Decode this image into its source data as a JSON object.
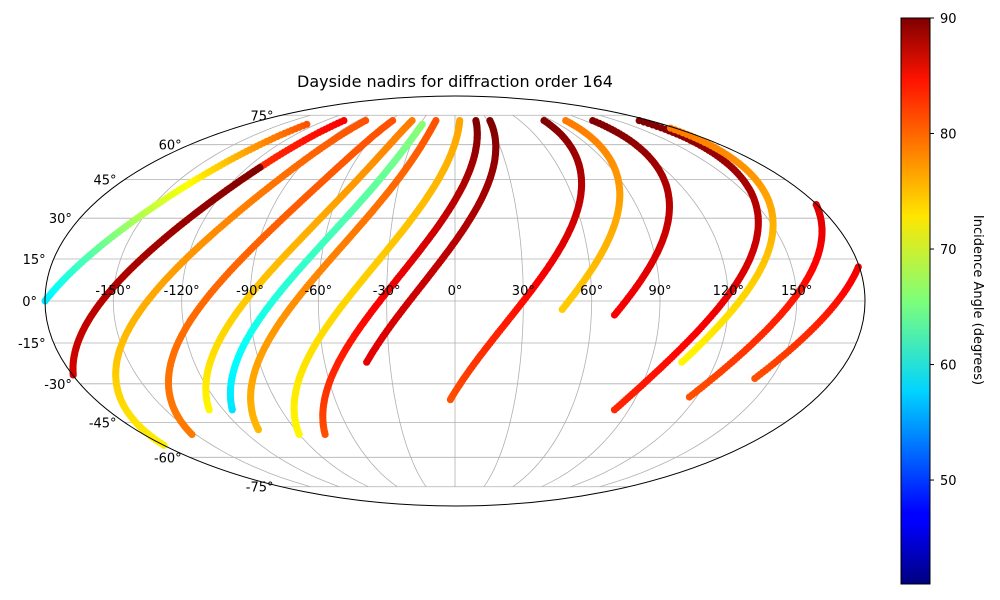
{
  "chart_data": {
    "type": "scatter",
    "projection": "mollweide",
    "title": "Dayside nadirs for diffraction order 164",
    "grid": true,
    "longitude_ticks": [
      "-150°",
      "-120°",
      "-90°",
      "-60°",
      "-30°",
      "0°",
      "30°",
      "60°",
      "90°",
      "120°",
      "150°"
    ],
    "latitude_ticks": [
      "75°",
      "60°",
      "45°",
      "30°",
      "15°",
      "0°",
      "-15°",
      "-30°",
      "-45°",
      "-60°",
      "-75°"
    ],
    "colorbar": {
      "label": "Incidence Angle (degrees)",
      "colormap": "jet",
      "range": [
        41,
        90
      ],
      "ticks": [
        "50",
        "60",
        "70",
        "80",
        "90"
      ]
    },
    "series": [
      {
        "lat_range": [
          -33,
          70
        ],
        "lon_at_lat0": -180,
        "incidence": [
          48,
          80
        ]
      },
      {
        "lat_range": [
          -58,
          72
        ],
        "lon_at_lat0": -155,
        "incidence": [
          70,
          84
        ]
      },
      {
        "lat_range": [
          -60,
          72
        ],
        "lon_at_lat0": -135,
        "incidence": [
          72,
          80
        ]
      },
      {
        "lat_range": [
          -42,
          50
        ],
        "lon_at_lat0": -155,
        "incidence": [
          85,
          90
        ]
      },
      {
        "lat_range": [
          -50,
          72
        ],
        "lon_at_lat0": -110,
        "incidence": [
          78,
          80
        ]
      },
      {
        "lat_range": [
          -40,
          72
        ],
        "lon_at_lat0": -92,
        "incidence": [
          72,
          78
        ]
      },
      {
        "lat_range": [
          -40,
          70
        ],
        "lon_at_lat0": -80,
        "incidence": [
          58,
          66
        ]
      },
      {
        "lat_range": [
          -48,
          72
        ],
        "lon_at_lat0": -70,
        "incidence": [
          75,
          80
        ]
      },
      {
        "lat_range": [
          -50,
          72
        ],
        "lon_at_lat0": -48,
        "incidence": [
          72,
          76
        ]
      },
      {
        "lat_range": [
          -50,
          72
        ],
        "lon_at_lat0": -33,
        "incidence": [
          80,
          90
        ]
      },
      {
        "lat_range": [
          -22,
          72
        ],
        "lon_at_lat0": -20,
        "incidence": [
          85,
          90
        ]
      },
      {
        "lat_range": [
          -36,
          72
        ],
        "lon_at_lat0": 30,
        "incidence": [
          80,
          90
        ]
      },
      {
        "lat_range": [
          -3,
          72
        ],
        "lon_at_lat0": 50,
        "incidence": [
          74,
          78
        ]
      },
      {
        "lat_range": [
          -5,
          72
        ],
        "lon_at_lat0": 75,
        "incidence": [
          84,
          90
        ]
      },
      {
        "lat_range": [
          -40,
          72
        ],
        "lon_at_lat0": 118,
        "incidence": [
          82,
          90
        ]
      },
      {
        "lat_range": [
          -22,
          68
        ],
        "lon_at_lat0": 125,
        "incidence": [
          72,
          78
        ]
      },
      {
        "lat_range": [
          -35,
          66
        ],
        "lon_at_lat0": 148,
        "incidence": [
          80,
          88
        ]
      },
      {
        "lat_range": [
          -28,
          60
        ],
        "lon_at_lat0": 168,
        "incidence": [
          80,
          90
        ]
      }
    ]
  }
}
